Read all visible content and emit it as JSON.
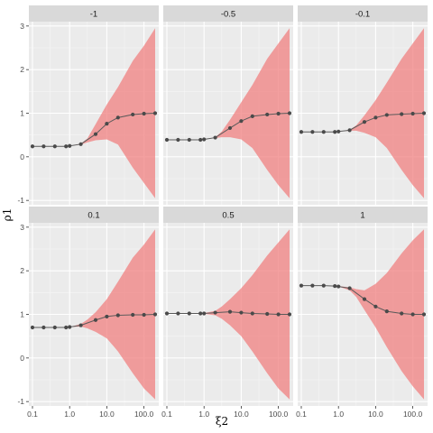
{
  "chart_data": {
    "type": "line",
    "xlabel": "ξ2",
    "ylabel": "ρ1",
    "x_scale": "log10",
    "x": [
      0.1,
      0.2,
      0.4,
      0.8,
      1.0,
      2.0,
      5.0,
      10.0,
      20.0,
      50.0,
      100.0,
      200.0
    ],
    "x_ticks": [
      0.1,
      1.0,
      10.0,
      100.0
    ],
    "x_tick_labels": [
      "0.1",
      "1.0",
      "10.0",
      "100.0"
    ],
    "y_ticks": [
      -1,
      0,
      1,
      2,
      3
    ],
    "y_tick_labels": [
      "-1",
      "0",
      "1",
      "2",
      "3"
    ],
    "ylim": [
      -1.1,
      3.1
    ],
    "grid": true,
    "colors": {
      "ribbon": "#f08080",
      "line": "#5a5a5a",
      "point": "#4a4a4a",
      "panel_bg": "#ebebeb",
      "strip_bg": "#d9d9d9",
      "grid_major": "#ffffff",
      "grid_minor": "#f5f5f5"
    },
    "panels": [
      {
        "strip": "-1",
        "points": [
          [
            0.1,
            0.24
          ],
          [
            0.2,
            0.24
          ],
          [
            0.4,
            0.24
          ],
          [
            0.8,
            0.24
          ],
          [
            1.0,
            0.25
          ],
          [
            2.0,
            0.29
          ],
          [
            5.0,
            0.52
          ],
          [
            10.0,
            0.76
          ],
          [
            20.0,
            0.9
          ],
          [
            50.0,
            0.97
          ],
          [
            100.0,
            0.99
          ],
          [
            200.0,
            1.0
          ]
        ],
        "band_x": [
          0.1,
          0.2,
          0.4,
          0.8,
          1.0,
          2.0,
          3.0,
          5.0,
          10.0,
          20.0,
          50.0,
          100.0,
          200.0
        ],
        "band_upper": [
          0.24,
          0.24,
          0.24,
          0.24,
          0.25,
          0.3,
          0.42,
          0.75,
          1.2,
          1.6,
          2.2,
          2.55,
          2.95
        ],
        "band_lower": [
          0.24,
          0.24,
          0.24,
          0.24,
          0.25,
          0.28,
          0.33,
          0.38,
          0.4,
          0.28,
          -0.25,
          -0.6,
          -0.95
        ]
      },
      {
        "strip": "-0.5",
        "points": [
          [
            0.1,
            0.39
          ],
          [
            0.2,
            0.39
          ],
          [
            0.4,
            0.39
          ],
          [
            0.8,
            0.39
          ],
          [
            1.0,
            0.4
          ],
          [
            2.0,
            0.44
          ],
          [
            5.0,
            0.66
          ],
          [
            10.0,
            0.82
          ],
          [
            20.0,
            0.93
          ],
          [
            50.0,
            0.97
          ],
          [
            100.0,
            0.99
          ],
          [
            200.0,
            1.0
          ]
        ],
        "band_x": [
          0.1,
          0.2,
          0.4,
          0.8,
          1.0,
          2.0,
          3.0,
          5.0,
          10.0,
          20.0,
          50.0,
          100.0,
          200.0
        ],
        "band_upper": [
          0.39,
          0.39,
          0.39,
          0.39,
          0.4,
          0.45,
          0.58,
          0.85,
          1.25,
          1.65,
          2.25,
          2.6,
          2.95
        ],
        "band_lower": [
          0.39,
          0.39,
          0.39,
          0.39,
          0.4,
          0.43,
          0.45,
          0.45,
          0.4,
          0.2,
          -0.3,
          -0.65,
          -0.95
        ]
      },
      {
        "strip": "-0.1",
        "points": [
          [
            0.1,
            0.57
          ],
          [
            0.2,
            0.57
          ],
          [
            0.4,
            0.57
          ],
          [
            0.8,
            0.57
          ],
          [
            1.0,
            0.58
          ],
          [
            2.0,
            0.61
          ],
          [
            5.0,
            0.8
          ],
          [
            10.0,
            0.9
          ],
          [
            20.0,
            0.96
          ],
          [
            50.0,
            0.98
          ],
          [
            100.0,
            0.99
          ],
          [
            200.0,
            1.0
          ]
        ],
        "band_x": [
          0.1,
          0.2,
          0.4,
          0.8,
          1.0,
          2.0,
          3.0,
          5.0,
          10.0,
          20.0,
          50.0,
          100.0,
          200.0
        ],
        "band_upper": [
          0.57,
          0.57,
          0.57,
          0.57,
          0.58,
          0.62,
          0.72,
          0.95,
          1.3,
          1.7,
          2.25,
          2.6,
          2.95
        ],
        "band_lower": [
          0.57,
          0.57,
          0.57,
          0.57,
          0.58,
          0.6,
          0.6,
          0.55,
          0.45,
          0.2,
          -0.3,
          -0.65,
          -0.95
        ]
      },
      {
        "strip": "0.1",
        "points": [
          [
            0.1,
            0.7
          ],
          [
            0.2,
            0.7
          ],
          [
            0.4,
            0.7
          ],
          [
            0.8,
            0.7
          ],
          [
            1.0,
            0.71
          ],
          [
            2.0,
            0.75
          ],
          [
            5.0,
            0.87
          ],
          [
            10.0,
            0.95
          ],
          [
            20.0,
            0.98
          ],
          [
            50.0,
            0.99
          ],
          [
            100.0,
            0.99
          ],
          [
            200.0,
            1.0
          ]
        ],
        "band_x": [
          0.1,
          0.2,
          0.4,
          0.8,
          1.0,
          2.0,
          3.0,
          5.0,
          10.0,
          20.0,
          50.0,
          100.0,
          200.0
        ],
        "band_upper": [
          0.7,
          0.7,
          0.7,
          0.7,
          0.71,
          0.78,
          0.88,
          1.05,
          1.35,
          1.75,
          2.3,
          2.6,
          2.95
        ],
        "band_lower": [
          0.7,
          0.7,
          0.7,
          0.7,
          0.71,
          0.72,
          0.68,
          0.6,
          0.45,
          0.15,
          -0.35,
          -0.7,
          -0.95
        ]
      },
      {
        "strip": "0.5",
        "points": [
          [
            0.1,
            1.02
          ],
          [
            0.2,
            1.02
          ],
          [
            0.4,
            1.02
          ],
          [
            0.8,
            1.02
          ],
          [
            1.0,
            1.02
          ],
          [
            2.0,
            1.04
          ],
          [
            5.0,
            1.06
          ],
          [
            10.0,
            1.04
          ],
          [
            20.0,
            1.02
          ],
          [
            50.0,
            1.01
          ],
          [
            100.0,
            1.0
          ],
          [
            200.0,
            1.0
          ]
        ],
        "band_x": [
          0.1,
          0.2,
          0.4,
          0.8,
          1.0,
          2.0,
          3.0,
          5.0,
          10.0,
          20.0,
          50.0,
          100.0,
          200.0
        ],
        "band_upper": [
          1.02,
          1.02,
          1.02,
          1.02,
          1.03,
          1.08,
          1.18,
          1.35,
          1.6,
          1.9,
          2.35,
          2.65,
          2.95
        ],
        "band_lower": [
          1.02,
          1.02,
          1.02,
          1.02,
          1.01,
          0.98,
          0.9,
          0.75,
          0.5,
          0.15,
          -0.35,
          -0.7,
          -0.95
        ]
      },
      {
        "strip": "1",
        "points": [
          [
            0.1,
            1.66
          ],
          [
            0.2,
            1.66
          ],
          [
            0.4,
            1.66
          ],
          [
            0.8,
            1.65
          ],
          [
            1.0,
            1.64
          ],
          [
            2.0,
            1.6
          ],
          [
            5.0,
            1.35
          ],
          [
            10.0,
            1.18
          ],
          [
            20.0,
            1.07
          ],
          [
            50.0,
            1.02
          ],
          [
            100.0,
            1.0
          ],
          [
            200.0,
            1.0
          ]
        ],
        "band_x": [
          0.1,
          0.2,
          0.4,
          0.8,
          1.0,
          2.0,
          3.0,
          5.0,
          10.0,
          20.0,
          50.0,
          100.0,
          200.0
        ],
        "band_upper": [
          1.66,
          1.66,
          1.66,
          1.66,
          1.65,
          1.62,
          1.58,
          1.55,
          1.7,
          1.95,
          2.4,
          2.7,
          2.95
        ],
        "band_lower": [
          1.66,
          1.66,
          1.66,
          1.66,
          1.64,
          1.55,
          1.4,
          1.1,
          0.7,
          0.25,
          -0.3,
          -0.65,
          -0.95
        ]
      }
    ]
  }
}
